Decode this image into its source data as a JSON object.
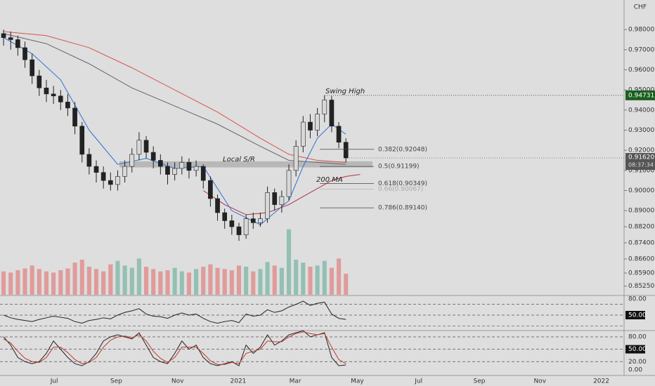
{
  "chart_data": {
    "type": "candlestick",
    "currency": "CHF",
    "categories": [
      null,
      null,
      null,
      null,
      null,
      null,
      null,
      null,
      null,
      null,
      null,
      null,
      null,
      null,
      null,
      null,
      null,
      null,
      null,
      null,
      null,
      null,
      null,
      null,
      null,
      null,
      null,
      null,
      null,
      null,
      null,
      null,
      null,
      null,
      null,
      null,
      null,
      null,
      null,
      null,
      null,
      null,
      null,
      null,
      null,
      null,
      null,
      null,
      null
    ],
    "open": [
      0.978,
      0.976,
      0.975,
      0.971,
      0.965,
      0.957,
      0.951,
      0.948,
      0.947,
      0.944,
      0.941,
      0.932,
      0.918,
      0.912,
      0.909,
      0.905,
      0.903,
      0.907,
      0.912,
      0.918,
      0.925,
      0.919,
      0.915,
      0.912,
      0.908,
      0.911,
      0.914,
      0.91,
      0.912,
      0.905,
      0.896,
      0.889,
      0.885,
      0.882,
      0.878,
      0.886,
      0.884,
      0.886,
      0.899,
      0.893,
      0.897,
      0.91,
      0.922,
      0.934,
      0.93,
      0.938,
      0.945,
      0.932,
      0.924
    ],
    "high": [
      0.98,
      0.979,
      0.977,
      0.974,
      0.968,
      0.96,
      0.955,
      0.952,
      0.95,
      0.948,
      0.944,
      0.934,
      0.921,
      0.915,
      0.912,
      0.909,
      0.91,
      0.915,
      0.921,
      0.929,
      0.927,
      0.922,
      0.918,
      0.914,
      0.914,
      0.917,
      0.916,
      0.915,
      0.913,
      0.907,
      0.898,
      0.891,
      0.888,
      0.884,
      0.888,
      0.889,
      0.889,
      0.902,
      0.901,
      0.9,
      0.913,
      0.925,
      0.937,
      0.938,
      0.941,
      0.9473,
      0.947,
      0.934,
      0.926
    ],
    "low": [
      0.972,
      0.97,
      0.967,
      0.961,
      0.953,
      0.947,
      0.944,
      0.943,
      0.94,
      0.937,
      0.928,
      0.914,
      0.908,
      0.904,
      0.901,
      0.9,
      0.9,
      0.904,
      0.909,
      0.915,
      0.916,
      0.911,
      0.908,
      0.903,
      0.905,
      0.908,
      0.906,
      0.907,
      0.901,
      0.892,
      0.885,
      0.881,
      0.878,
      0.875,
      0.876,
      0.881,
      0.882,
      0.884,
      0.89,
      0.889,
      0.895,
      0.907,
      0.919,
      0.926,
      0.927,
      0.934,
      0.929,
      0.921,
      0.914
    ],
    "close": [
      0.976,
      0.975,
      0.971,
      0.965,
      0.957,
      0.951,
      0.948,
      0.947,
      0.944,
      0.941,
      0.932,
      0.918,
      0.912,
      0.909,
      0.905,
      0.903,
      0.907,
      0.912,
      0.918,
      0.925,
      0.919,
      0.915,
      0.912,
      0.908,
      0.911,
      0.914,
      0.91,
      0.912,
      0.905,
      0.896,
      0.889,
      0.885,
      0.882,
      0.878,
      0.886,
      0.884,
      0.886,
      0.899,
      0.893,
      0.897,
      0.91,
      0.922,
      0.934,
      0.93,
      0.938,
      0.945,
      0.932,
      0.924,
      0.9162
    ],
    "up_color": "#d8d8d8",
    "down_color": "#222222",
    "xlim": [
      -0.5,
      87
    ],
    "xticks": [
      {
        "value": 7.1,
        "label": "Jul"
      },
      {
        "value": 15.8,
        "label": "Sep"
      },
      {
        "value": 24.4,
        "label": "Nov"
      },
      {
        "value": 32.9,
        "label": "2021"
      },
      {
        "value": 40.9,
        "label": "Mar"
      },
      {
        "value": 49.6,
        "label": "May"
      },
      {
        "value": 58.2,
        "label": "Jul"
      },
      {
        "value": 66.7,
        "label": "Sep"
      },
      {
        "value": 75.2,
        "label": "Nov"
      },
      {
        "value": 83.8,
        "label": "2022"
      }
    ],
    "ylim": [
      0.8482,
      0.9947
    ],
    "yticks": [
      {
        "value": 0.98,
        "label": "0.98000"
      },
      {
        "value": 0.97,
        "label": "0.97000"
      },
      {
        "value": 0.96,
        "label": "0.96000"
      },
      {
        "value": 0.95,
        "label": "0.95000"
      },
      {
        "value": 0.94,
        "label": "0.94000"
      },
      {
        "value": 0.93,
        "label": "0.93000"
      },
      {
        "value": 0.92,
        "label": "0.92000"
      },
      {
        "value": 0.91,
        "label": "0.91000"
      },
      {
        "value": 0.9,
        "label": "0.90000"
      },
      {
        "value": 0.89,
        "label": "0.89000"
      },
      {
        "value": 0.882,
        "label": "0.88200"
      },
      {
        "value": 0.874,
        "label": "0.87400"
      },
      {
        "value": 0.866,
        "label": "0.86600"
      },
      {
        "value": 0.859,
        "label": "0.85900"
      },
      {
        "value": 0.8525,
        "label": "0.85250"
      }
    ],
    "moving_averages": [
      {
        "color": "#d9534f",
        "x": [
          0,
          6,
          12,
          18,
          24,
          30,
          36,
          40,
          44,
          48
        ],
        "values": [
          0.979,
          0.977,
          0.971,
          0.961,
          0.95,
          0.939,
          0.926,
          0.918,
          0.915,
          0.914
        ]
      },
      {
        "color": "#666666",
        "x": [
          0,
          6,
          12,
          18,
          24,
          30,
          36,
          40,
          44,
          48
        ],
        "values": [
          0.978,
          0.973,
          0.963,
          0.951,
          0.942,
          0.933,
          0.922,
          0.915,
          0.914,
          0.913
        ]
      },
      {
        "color": "#b03040",
        "x": [
          28,
          31,
          34,
          37,
          40,
          43,
          46,
          48,
          50
        ],
        "values": [
          0.9,
          0.893,
          0.888,
          0.889,
          0.893,
          0.899,
          0.905,
          0.907,
          0.908
        ]
      },
      {
        "color": "#2f6fd6",
        "x": [
          0,
          4,
          8,
          12,
          16,
          20,
          24,
          28,
          32,
          36,
          40,
          42,
          44,
          46,
          48
        ],
        "values": [
          0.976,
          0.968,
          0.955,
          0.93,
          0.913,
          0.916,
          0.911,
          0.912,
          0.89,
          0.883,
          0.895,
          0.912,
          0.926,
          0.933,
          0.928
        ]
      }
    ],
    "volume": {
      "ylim": [
        0,
        120
      ],
      "up_color": "#7fb8a8",
      "down_color": "#e08a8a",
      "values": [
        40,
        38,
        42,
        45,
        50,
        44,
        40,
        38,
        42,
        45,
        55,
        60,
        48,
        44,
        40,
        52,
        58,
        50,
        46,
        62,
        48,
        44,
        40,
        42,
        46,
        40,
        38,
        44,
        48,
        52,
        46,
        44,
        42,
        50,
        48,
        40,
        44,
        56,
        50,
        46,
        112,
        60,
        55,
        48,
        50,
        58,
        46,
        62,
        36
      ]
    },
    "swing_high": {
      "label": "Swing High",
      "value": 0.94731
    },
    "last_price": {
      "value": 0.9162,
      "label": "0.91620",
      "countdown": "08:37:34"
    },
    "sr_zone": {
      "label": "Local S/R",
      "values": [
        0.9115,
        0.9145
      ]
    },
    "ma_label": "200 MA",
    "fib_levels": [
      {
        "label": "0.382(0.92048)",
        "value": 0.92048
      },
      {
        "label": "0.5(0.91199)",
        "value": 0.91199
      },
      {
        "label": "0.618(0.90349)",
        "value": 0.90349
      },
      {
        "label": "0.66(0.90067)",
        "value": 0.90067
      },
      {
        "label": "0.786(0.89140)",
        "value": 0.8914
      }
    ],
    "rsi": {
      "ylim": [
        22.6,
        85.2
      ],
      "yticks": [
        {
          "value": 80,
          "label": "80.00"
        },
        {
          "value": 50,
          "label": "50.00"
        }
      ],
      "levels": [
        70,
        50,
        30
      ],
      "color": "#222222",
      "values": [
        50,
        45,
        42,
        40,
        38,
        42,
        45,
        48,
        46,
        44,
        38,
        35,
        40,
        42,
        45,
        43,
        50,
        55,
        58,
        62,
        52,
        48,
        47,
        44,
        50,
        54,
        50,
        52,
        44,
        38,
        35,
        38,
        40,
        36,
        52,
        48,
        50,
        60,
        55,
        58,
        65,
        70,
        76,
        68,
        72,
        74,
        52,
        44,
        42
      ]
    },
    "stoch": {
      "ylim": [
        -13.6,
        93.6
      ],
      "yticks": [
        {
          "value": 80,
          "label": "80.00"
        },
        {
          "value": 50,
          "label": "50.00"
        },
        {
          "value": 20,
          "label": "20.00"
        },
        {
          "value": 0,
          "label": "0.00"
        }
      ],
      "levels": [
        80,
        50,
        20
      ],
      "k": {
        "color": "#222222",
        "values": [
          80,
          60,
          30,
          20,
          15,
          20,
          40,
          70,
          50,
          30,
          15,
          10,
          20,
          40,
          70,
          80,
          85,
          80,
          75,
          90,
          60,
          30,
          20,
          15,
          40,
          70,
          50,
          60,
          30,
          15,
          10,
          15,
          20,
          10,
          60,
          40,
          55,
          85,
          60,
          70,
          85,
          90,
          95,
          80,
          85,
          90,
          30,
          10,
          12
        ]
      },
      "d": {
        "color": "#c0392b",
        "values": [
          75,
          65,
          45,
          28,
          20,
          18,
          30,
          55,
          55,
          42,
          25,
          15,
          18,
          30,
          55,
          72,
          80,
          82,
          78,
          85,
          70,
          45,
          28,
          18,
          30,
          55,
          55,
          55,
          40,
          22,
          13,
          13,
          18,
          15,
          40,
          45,
          50,
          70,
          68,
          68,
          80,
          88,
          92,
          88,
          85,
          88,
          55,
          25,
          15
        ]
      }
    }
  }
}
